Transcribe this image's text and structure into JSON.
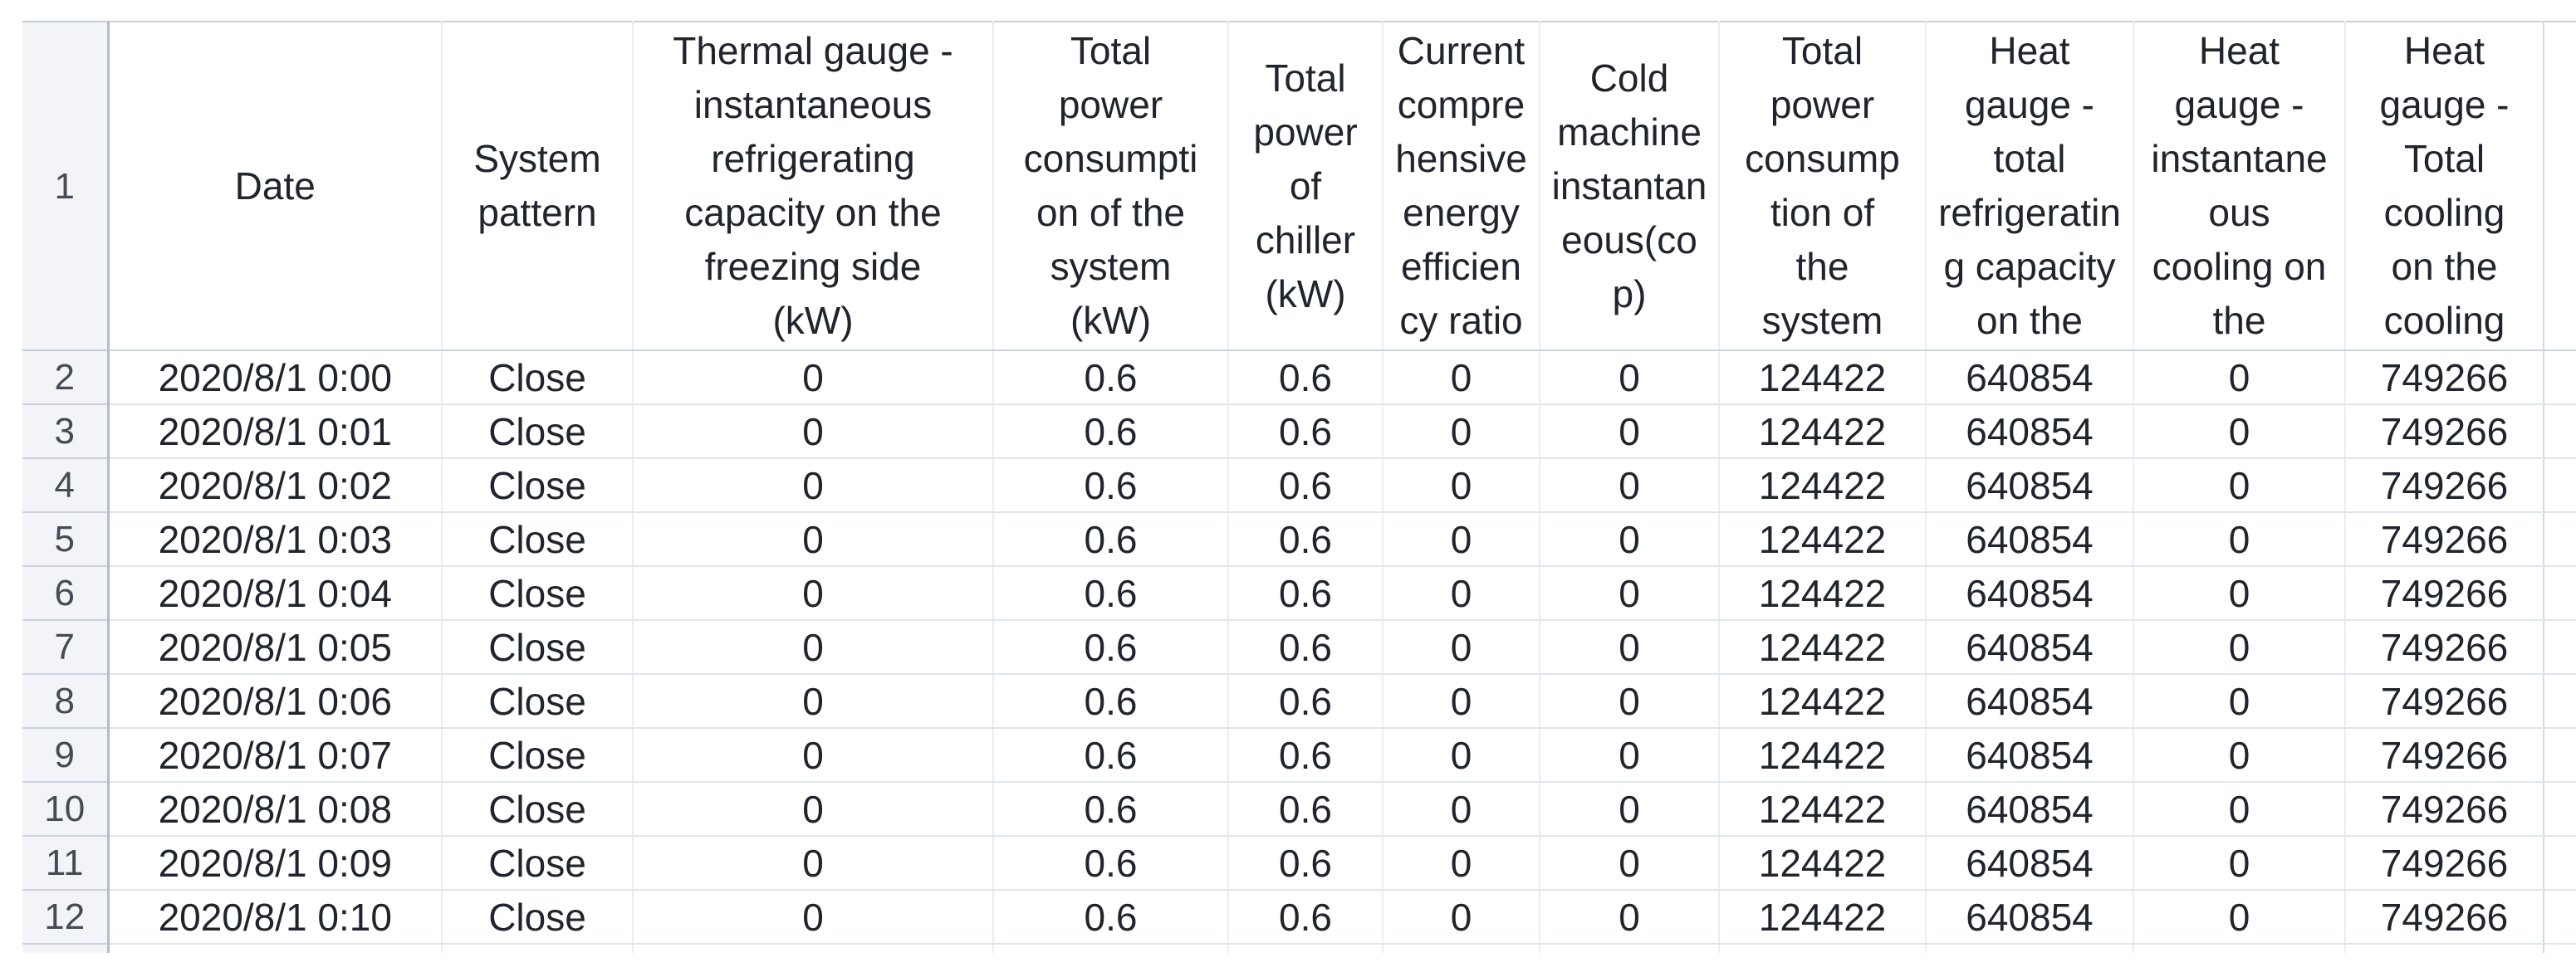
{
  "sheet": {
    "corner_row_label": "1",
    "column_headers": [
      "Date",
      "System\npattern",
      "Thermal gauge -\ninstantaneous\nrefrigerating\ncapacity on the\nfreezing side\n(kW)",
      "Total\npower\nconsumpti\non of the\nsystem\n(kW)",
      "Total\npower\nof\nchiller\n(kW)",
      "Current\ncompre\nhensive\nenergy\nefficien\ncy ratio",
      "Cold\nmachine\ninstantan\neous(co\np)",
      "Total\npower\nconsump\ntion of\nthe\nsystem",
      "Heat\ngauge -\ntotal\nrefrigeratin\ng capacity\non the",
      "Heat\ngauge -\ninstantane\nous\ncooling on\nthe",
      "Heat\ngauge -\nTotal\ncooling\non the\ncooling"
    ],
    "row_numbers": [
      "2",
      "3",
      "4",
      "5",
      "6",
      "7",
      "8",
      "9",
      "10",
      "11",
      "12"
    ],
    "rows": [
      [
        "2020/8/1 0:00",
        "Close",
        "0",
        "0.6",
        "0.6",
        "0",
        "0",
        "124422",
        "640854",
        "0",
        "749266"
      ],
      [
        "2020/8/1 0:01",
        "Close",
        "0",
        "0.6",
        "0.6",
        "0",
        "0",
        "124422",
        "640854",
        "0",
        "749266"
      ],
      [
        "2020/8/1 0:02",
        "Close",
        "0",
        "0.6",
        "0.6",
        "0",
        "0",
        "124422",
        "640854",
        "0",
        "749266"
      ],
      [
        "2020/8/1 0:03",
        "Close",
        "0",
        "0.6",
        "0.6",
        "0",
        "0",
        "124422",
        "640854",
        "0",
        "749266"
      ],
      [
        "2020/8/1 0:04",
        "Close",
        "0",
        "0.6",
        "0.6",
        "0",
        "0",
        "124422",
        "640854",
        "0",
        "749266"
      ],
      [
        "2020/8/1 0:05",
        "Close",
        "0",
        "0.6",
        "0.6",
        "0",
        "0",
        "124422",
        "640854",
        "0",
        "749266"
      ],
      [
        "2020/8/1 0:06",
        "Close",
        "0",
        "0.6",
        "0.6",
        "0",
        "0",
        "124422",
        "640854",
        "0",
        "749266"
      ],
      [
        "2020/8/1 0:07",
        "Close",
        "0",
        "0.6",
        "0.6",
        "0",
        "0",
        "124422",
        "640854",
        "0",
        "749266"
      ],
      [
        "2020/8/1 0:08",
        "Close",
        "0",
        "0.6",
        "0.6",
        "0",
        "0",
        "124422",
        "640854",
        "0",
        "749266"
      ],
      [
        "2020/8/1 0:09",
        "Close",
        "0",
        "0.6",
        "0.6",
        "0",
        "0",
        "124422",
        "640854",
        "0",
        "749266"
      ],
      [
        "2020/8/1 0:10",
        "Close",
        "0",
        "0.6",
        "0.6",
        "0",
        "0",
        "124422",
        "640854",
        "0",
        "749266"
      ]
    ],
    "colors": {
      "gutter_background": "#f2f4f7",
      "gutter_border": "#b4becd",
      "gridline_horizontal": "#dfe5f0",
      "gridline_vertical": "#e9edf5",
      "header_separator": "#ccd4e0",
      "text": "#20242c",
      "gutter_text": "#454b55"
    }
  }
}
